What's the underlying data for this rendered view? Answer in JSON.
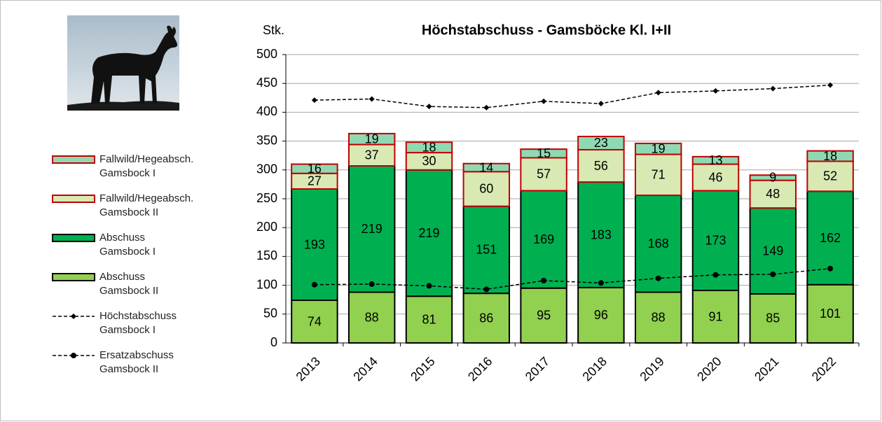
{
  "chart_data": {
    "type": "bar",
    "stacked": true,
    "title": "Höchstabschuss - Gamsböcke Kl. I+II",
    "y_label": "Stk.",
    "categories": [
      "2013",
      "2014",
      "2015",
      "2016",
      "2017",
      "2018",
      "2019",
      "2020",
      "2021",
      "2022"
    ],
    "series": [
      {
        "name": "Abschuss Gamsbock II",
        "type": "bar",
        "color": "#92d050",
        "edgecolor": "#000000",
        "values": [
          74,
          88,
          81,
          86,
          95,
          96,
          88,
          91,
          85,
          101
        ]
      },
      {
        "name": "Abschuss Gamsbock I",
        "type": "bar",
        "color": "#00b050",
        "edgecolor": "#000000",
        "values": [
          193,
          219,
          219,
          151,
          169,
          183,
          168,
          173,
          149,
          162
        ]
      },
      {
        "name": "Fallwild/Hegeabsch. Gamsbock II",
        "type": "bar",
        "color": "#d8e9b4",
        "edgecolor": "#c00000",
        "values": [
          27,
          37,
          30,
          60,
          57,
          56,
          71,
          46,
          48,
          52
        ]
      },
      {
        "name": "Fallwild/Hegeabsch. Gamsbock I",
        "type": "bar",
        "color": "#8fd9b2",
        "edgecolor": "#c00000",
        "values": [
          16,
          19,
          18,
          14,
          15,
          23,
          19,
          13,
          9,
          18
        ]
      },
      {
        "name": "Höchstabschuss Gamsbock I",
        "type": "line",
        "marker": "diamond",
        "color": "#000000",
        "values": [
          421,
          423,
          410,
          408,
          419,
          415,
          434,
          437,
          441,
          447
        ]
      },
      {
        "name": "Ersatzabschuss Gamsbock II",
        "type": "line",
        "marker": "circle",
        "color": "#000000",
        "values": [
          101,
          102,
          99,
          93,
          108,
          104,
          112,
          118,
          119,
          129
        ]
      }
    ],
    "ylim": [
      0,
      500
    ],
    "yticks": [
      0,
      50,
      100,
      150,
      200,
      250,
      300,
      350,
      400,
      450,
      500
    ],
    "grid": true,
    "legend": "left"
  }
}
